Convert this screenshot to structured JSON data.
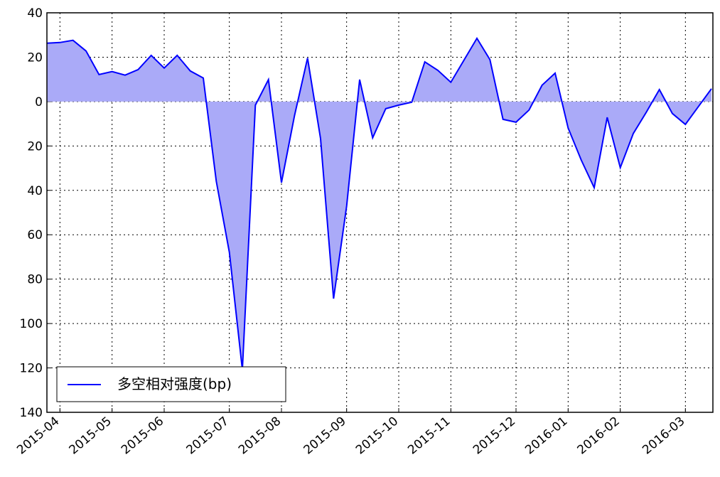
{
  "chart_data": {
    "type": "area",
    "categories": [
      null,
      "2015-04",
      null,
      null,
      null,
      "2015-05",
      null,
      null,
      null,
      "2015-06",
      null,
      null,
      null,
      null,
      "2015-07",
      null,
      null,
      null,
      "2015-08",
      null,
      null,
      null,
      null,
      "2015-09",
      null,
      null,
      null,
      "2015-10",
      null,
      null,
      null,
      "2015-11",
      null,
      null,
      null,
      null,
      "2015-12",
      null,
      null,
      null,
      "2016-01",
      null,
      null,
      null,
      "2016-02",
      null,
      null,
      null,
      null,
      "2016-03",
      null,
      null
    ],
    "series": [
      {
        "name": "多空相对强度(bp)",
        "color": "#0000ff",
        "fill": "#aaaaf8",
        "values": [
          26.3,
          26.6,
          27.6,
          22.8,
          12.2,
          13.5,
          11.9,
          14.4,
          20.8,
          15.1,
          20.8,
          13.8,
          10.6,
          -35.9,
          -67.9,
          -120.8,
          -1.6,
          9.9,
          -36.5,
          -6.4,
          19.6,
          -16.7,
          -88.8,
          -47.1,
          9.9,
          -16.3,
          -3.2,
          -1.6,
          -0.3,
          17.9,
          14.1,
          8.7,
          18.6,
          28.5,
          18.9,
          -8.0,
          -9.3,
          -3.8,
          7.4,
          12.8,
          -11.9,
          -26.3,
          -38.8,
          -7.1,
          -29.8,
          -14.4,
          -4.8,
          5.4,
          -5.4,
          -10.3,
          -2.2,
          5.8
        ]
      }
    ],
    "ylim": [
      -140,
      40
    ],
    "yticks": [
      {
        "value": -140,
        "label": "140"
      },
      {
        "value": -120,
        "label": "120"
      },
      {
        "value": -100,
        "label": "100"
      },
      {
        "value": -80,
        "label": "80"
      },
      {
        "value": -60,
        "label": "60"
      },
      {
        "value": -40,
        "label": "40"
      },
      {
        "value": -20,
        "label": "20"
      },
      0,
      20,
      40
    ],
    "grid": true,
    "legend": "lower left"
  }
}
